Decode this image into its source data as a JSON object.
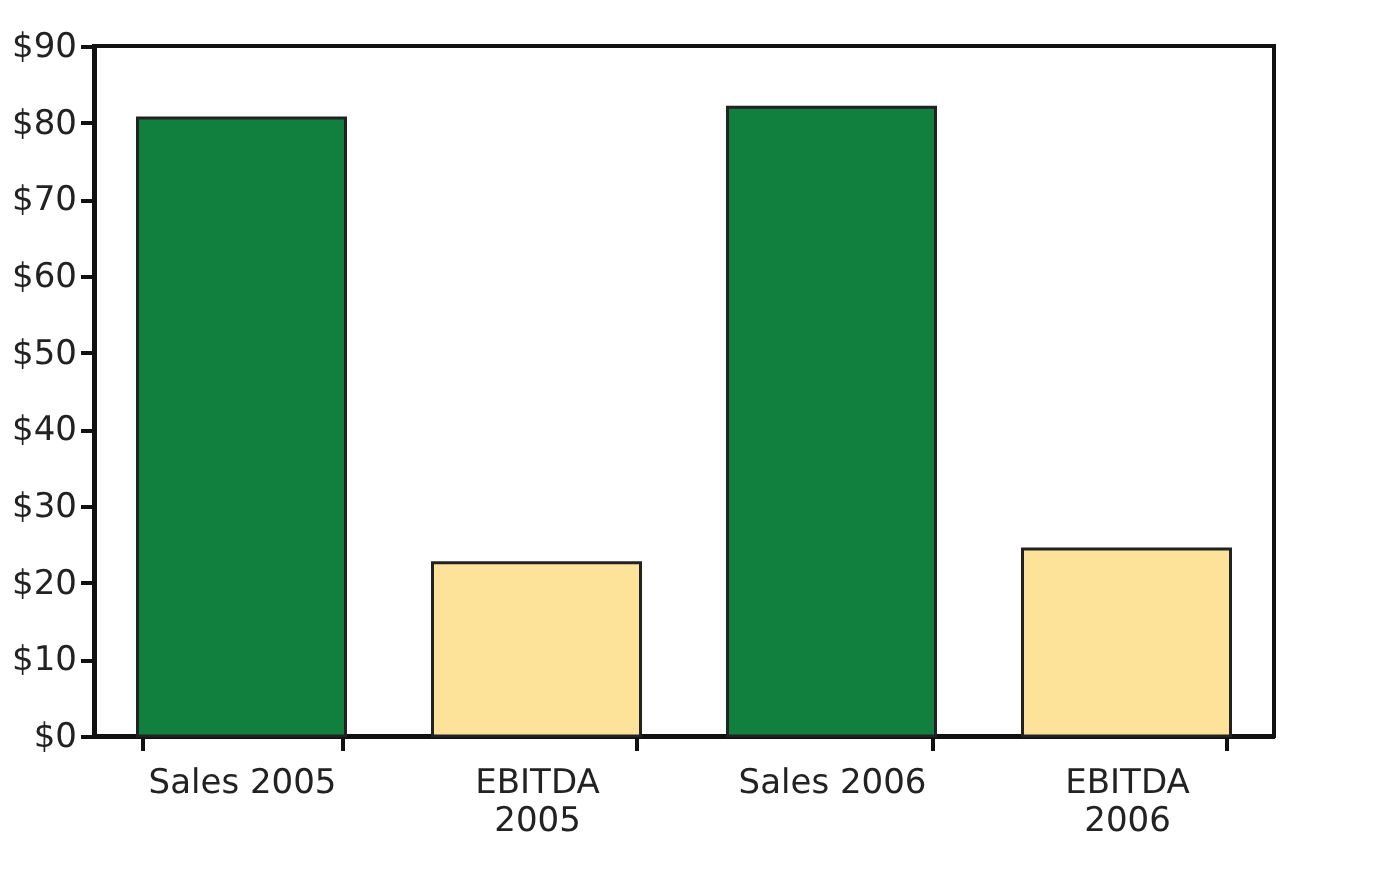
{
  "chart_data": {
    "type": "bar",
    "categories": [
      "Sales 2005",
      "EBITDA\n2005",
      "Sales 2006",
      "EBITDA\n2006"
    ],
    "values": [
      80.6,
      22.6,
      82.0,
      24.4
    ],
    "colors": [
      "#11803e",
      "#fde39a",
      "#11803e",
      "#fde39a"
    ],
    "ylim": [
      0,
      90
    ],
    "yticks": [
      {
        "value": 0,
        "label": "$0"
      },
      {
        "value": 10,
        "label": "$10"
      },
      {
        "value": 20,
        "label": "$20"
      },
      {
        "value": 30,
        "label": "$30"
      },
      {
        "value": 40,
        "label": "$40"
      },
      {
        "value": 50,
        "label": "$50"
      },
      {
        "value": 60,
        "label": "$60"
      },
      {
        "value": 70,
        "label": "$70"
      },
      {
        "value": 80,
        "label": "$80"
      },
      {
        "value": 90,
        "label": "$90"
      }
    ],
    "grid": false
  }
}
